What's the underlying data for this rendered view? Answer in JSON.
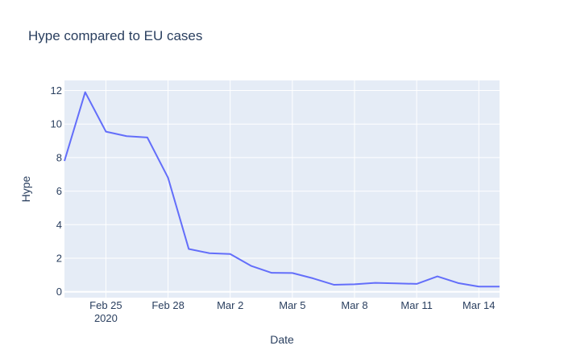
{
  "chart_data": {
    "type": "line",
    "title": "Hype compared to EU cases",
    "xlabel": "Date",
    "ylabel": "Hype",
    "x": [
      "2020-02-23",
      "2020-02-24",
      "2020-02-25",
      "2020-02-26",
      "2020-02-27",
      "2020-02-28",
      "2020-02-29",
      "2020-03-01",
      "2020-03-02",
      "2020-03-03",
      "2020-03-04",
      "2020-03-05",
      "2020-03-06",
      "2020-03-07",
      "2020-03-08",
      "2020-03-09",
      "2020-03-10",
      "2020-03-11",
      "2020-03-12",
      "2020-03-13",
      "2020-03-14",
      "2020-03-15"
    ],
    "series": [
      {
        "values": [
          7.8,
          11.9,
          9.55,
          9.28,
          9.2,
          6.8,
          2.55,
          2.3,
          2.25,
          1.55,
          1.13,
          1.12,
          0.8,
          0.42,
          0.45,
          0.53,
          0.5,
          0.47,
          0.92,
          0.52,
          0.31,
          0.31
        ]
      }
    ],
    "x_ticks": [
      {
        "date": "2020-02-25",
        "label": "Feb 25",
        "sublabel": "2020"
      },
      {
        "date": "2020-02-28",
        "label": "Feb 28"
      },
      {
        "date": "2020-03-02",
        "label": "Mar 2"
      },
      {
        "date": "2020-03-05",
        "label": "Mar 5"
      },
      {
        "date": "2020-03-08",
        "label": "Mar 8"
      },
      {
        "date": "2020-03-11",
        "label": "Mar 11"
      },
      {
        "date": "2020-03-14",
        "label": "Mar 14"
      }
    ],
    "y_ticks": [
      0,
      2,
      4,
      6,
      8,
      10,
      12
    ],
    "xlim": [
      "2020-02-23",
      "2020-03-15"
    ],
    "ylim": [
      -0.35,
      12.6
    ],
    "grid": true,
    "colors": {
      "line": "#636efa",
      "plot_bg": "#e5ecf6",
      "grid": "#ffffff",
      "text": "#2a3f5f"
    }
  }
}
